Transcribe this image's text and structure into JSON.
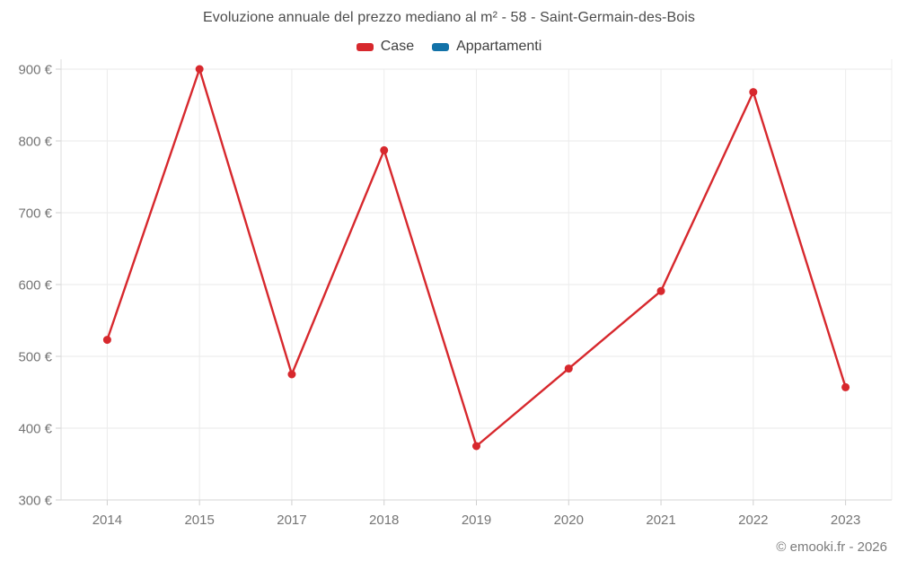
{
  "footer": {
    "text": "© emooki.fr - 2026"
  },
  "chart_data": {
    "type": "line",
    "title": "Evoluzione annuale del prezzo mediano al m² - 58 - Saint-Germain-des-Bois",
    "categories": [
      "2014",
      "2015",
      "2017",
      "2018",
      "2019",
      "2020",
      "2021",
      "2022",
      "2023"
    ],
    "series": [
      {
        "name": "Case",
        "color": "#d7282d",
        "values": [
          523,
          900,
          475,
          787,
          375,
          483,
          591,
          868,
          457
        ]
      },
      {
        "name": "Appartamenti",
        "color": "#1272a8",
        "values": []
      }
    ],
    "xlabel": "",
    "ylabel": "",
    "ylim": [
      300,
      900
    ],
    "y_ticks": [
      300,
      400,
      500,
      600,
      700,
      800,
      900
    ],
    "y_tick_suffix": " €",
    "grid": true,
    "legend_position": "top"
  }
}
